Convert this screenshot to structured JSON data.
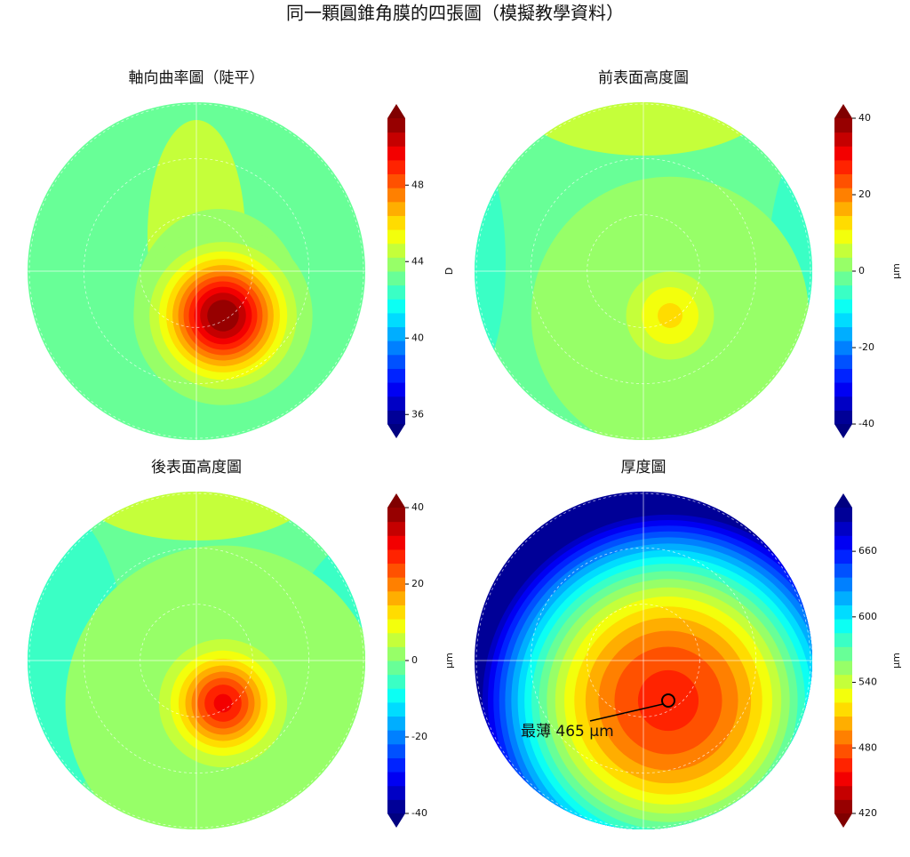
{
  "title": "同一顆圓錐角膜的四張圖（模擬教學資料）",
  "chart_data": [
    {
      "type": "contour",
      "title": "軸向曲率圖（陡平）",
      "cbar_label": "D",
      "colormap": "jet",
      "clim": [
        35.5,
        51.5
      ],
      "cticks": [
        36,
        40,
        44,
        48
      ]
    },
    {
      "type": "contour",
      "title": "前表面高度圖",
      "cbar_label": "µm",
      "colormap": "jet",
      "clim": [
        -40,
        40
      ],
      "cticks": [
        -40,
        -20,
        0,
        20,
        40
      ]
    },
    {
      "type": "contour",
      "title": "後表面高度圖",
      "cbar_label": "µm",
      "colormap": "jet",
      "clim": [
        -40,
        40
      ],
      "cticks": [
        -40,
        -20,
        0,
        20,
        40
      ]
    },
    {
      "type": "contour",
      "title": "厚度圖",
      "cbar_label": "µm",
      "colormap": "jet_r",
      "clim": [
        420,
        700
      ],
      "cticks": [
        420,
        480,
        540,
        600,
        660
      ],
      "annotation": {
        "label": "最薄 465 µm",
        "value": 465
      }
    }
  ]
}
